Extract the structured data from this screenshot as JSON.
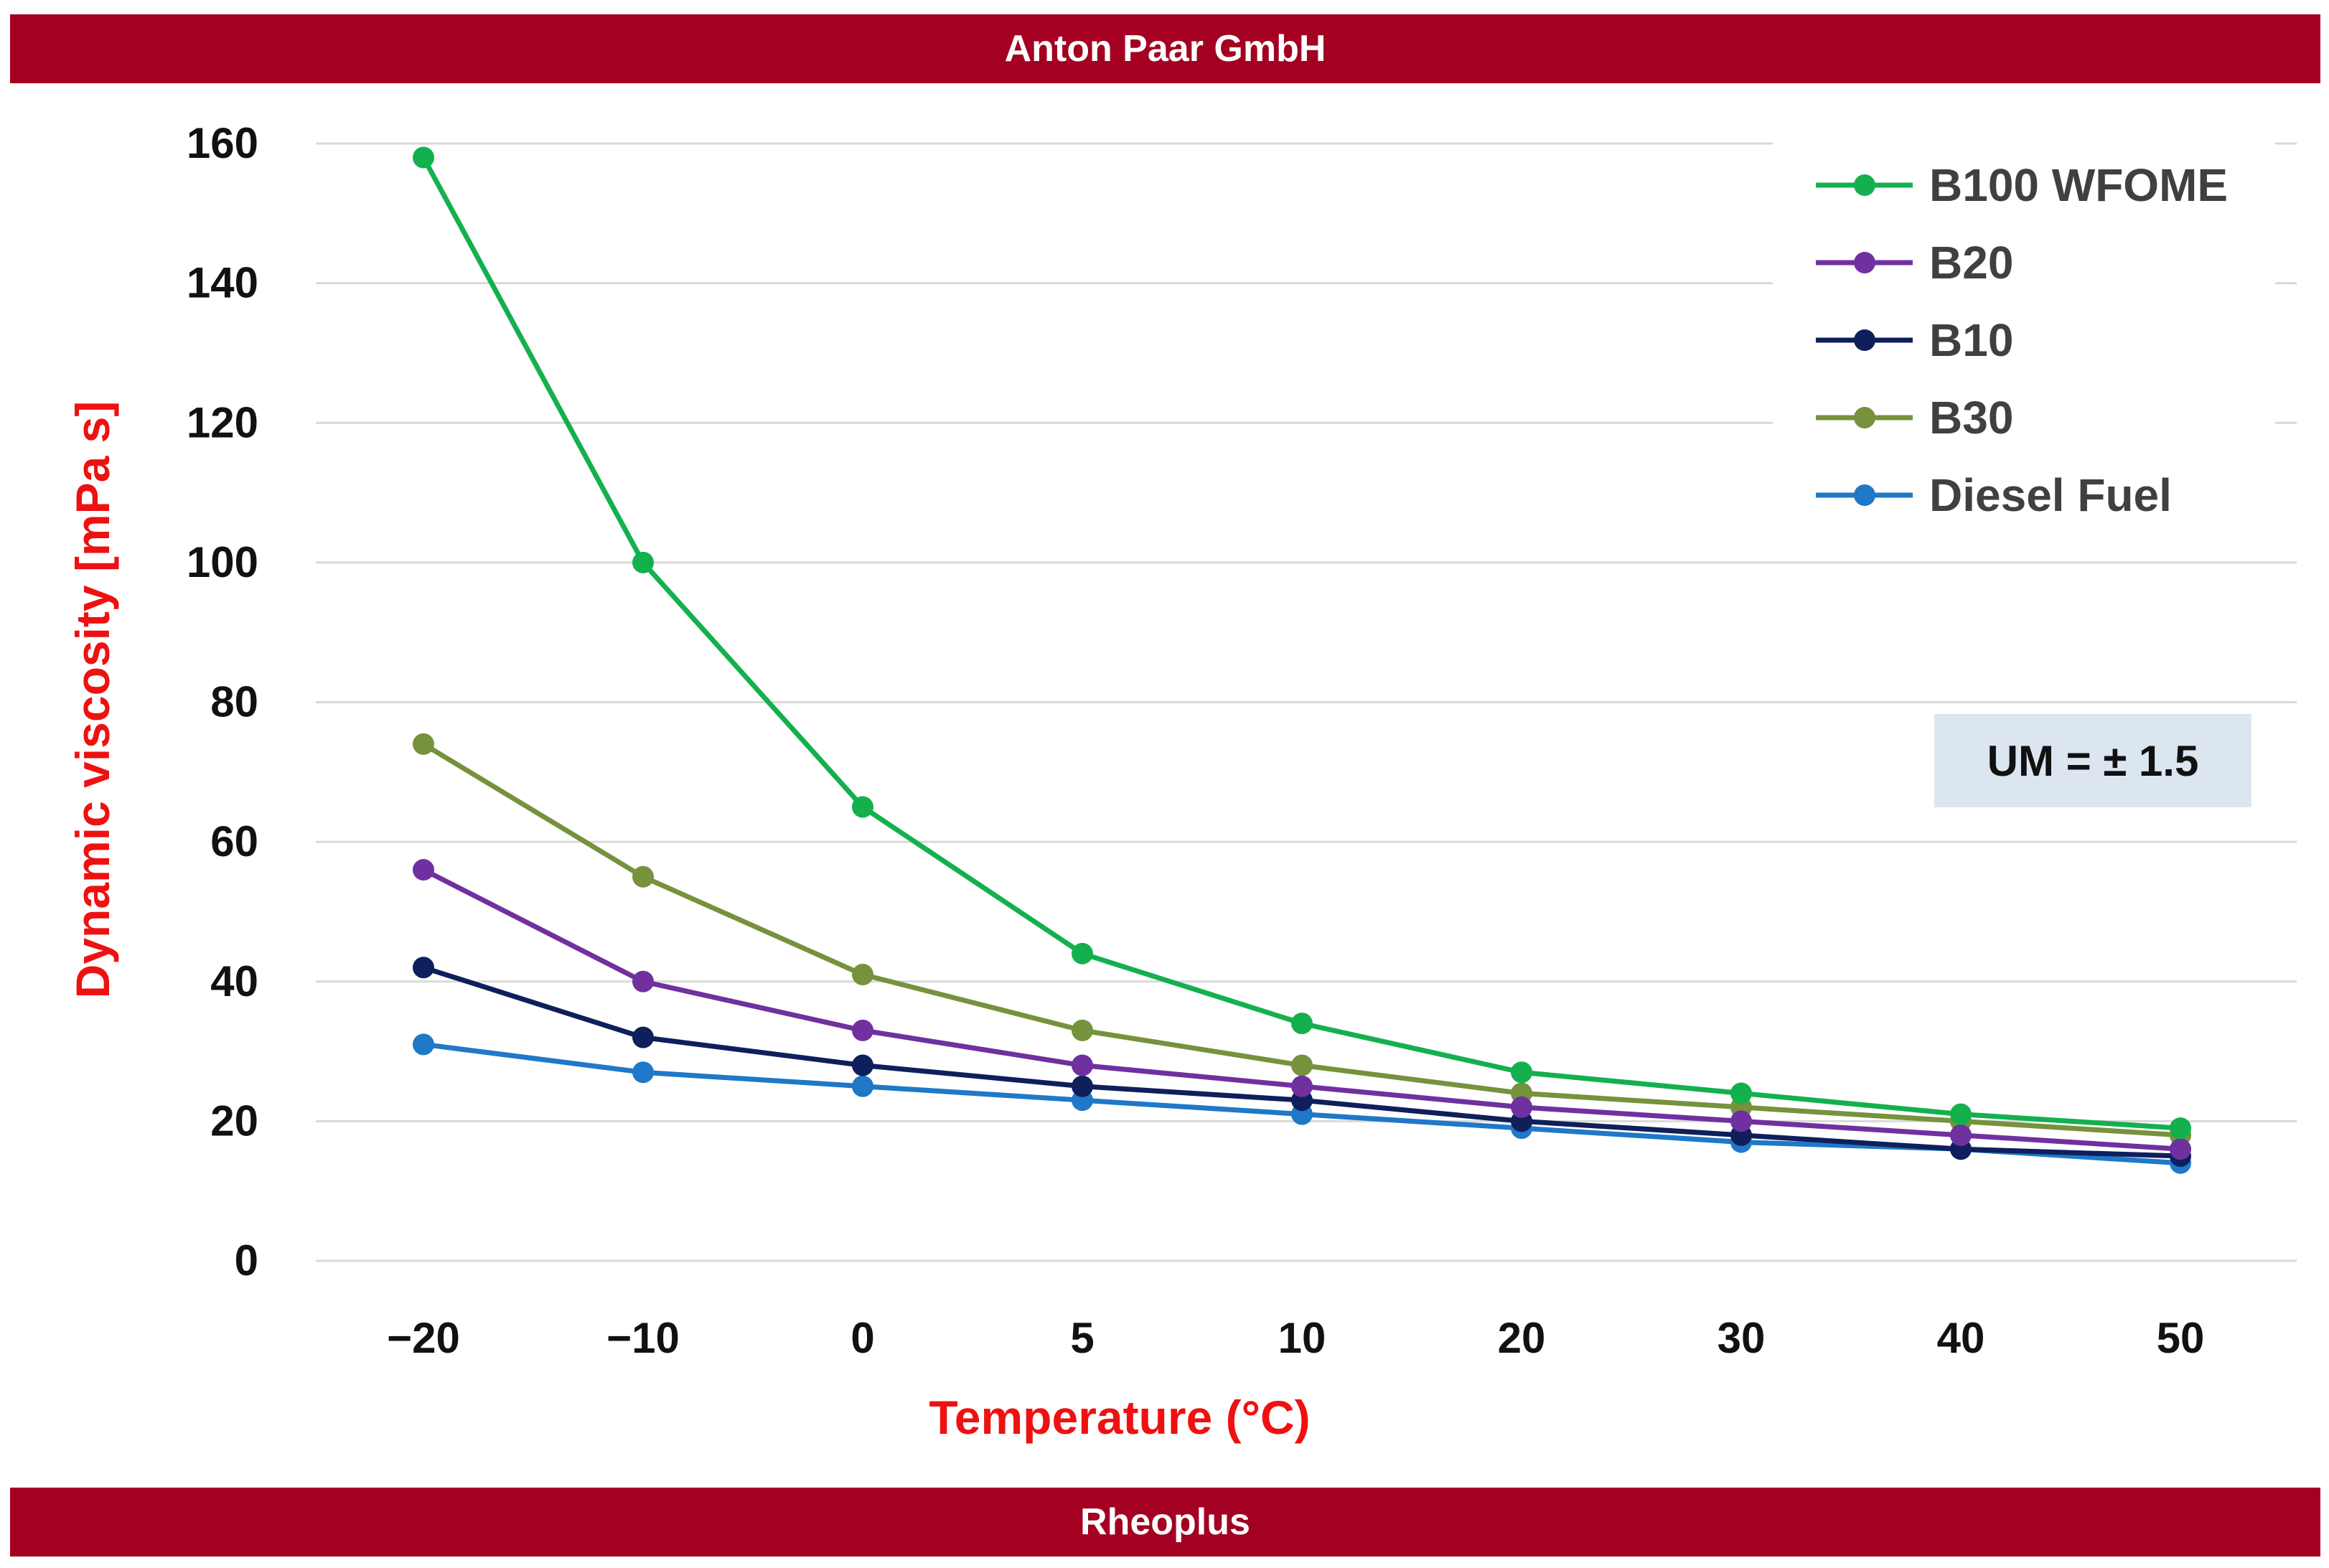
{
  "header": {
    "title": "Anton Paar GmbH"
  },
  "footer": {
    "title": "Rheoplus"
  },
  "annotation": {
    "text": "UM = ± 1.5"
  },
  "chart_data": {
    "type": "line",
    "xlabel": "Temperature (°C)",
    "ylabel": "Dynamic viscosity  [mPa s]",
    "categories": [
      "−20",
      "−10",
      "0",
      "5",
      "10",
      "20",
      "30",
      "40",
      "50"
    ],
    "ylim": [
      0,
      160
    ],
    "yticks": [
      0,
      20,
      40,
      60,
      80,
      100,
      120,
      140,
      160
    ],
    "grid": true,
    "legend_position": "top-right",
    "series": [
      {
        "name": "B100 WFOME",
        "color": "#14b04e",
        "values": [
          158,
          100,
          65,
          44,
          34,
          27,
          24,
          21,
          19
        ]
      },
      {
        "name": "B20",
        "color": "#7030a0",
        "values": [
          56,
          40,
          33,
          28,
          25,
          22,
          20,
          18,
          16
        ]
      },
      {
        "name": "B10",
        "color": "#0f1f5c",
        "values": [
          42,
          32,
          28,
          25,
          23,
          20,
          18,
          16,
          15
        ]
      },
      {
        "name": "B30",
        "color": "#76923c",
        "values": [
          74,
          55,
          41,
          33,
          28,
          24,
          22,
          20,
          18
        ]
      },
      {
        "name": "Diesel Fuel",
        "color": "#1f78c8",
        "values": [
          31,
          27,
          25,
          23,
          21,
          19,
          17,
          16,
          14
        ]
      }
    ]
  }
}
